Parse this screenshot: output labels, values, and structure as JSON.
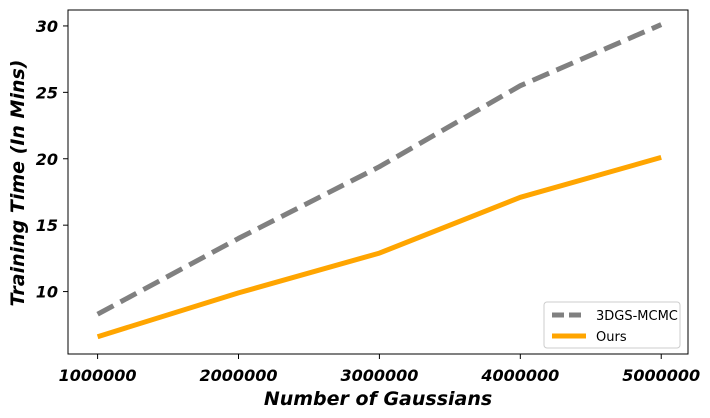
{
  "chart_data": {
    "type": "line",
    "title": "",
    "xlabel": "Number of Gaussians",
    "ylabel": "Training Time (In Mins)",
    "x": [
      1000000,
      2000000,
      3000000,
      4000000,
      5000000
    ],
    "x_ticks": [
      1000000,
      2000000,
      3000000,
      4000000,
      5000000
    ],
    "x_tick_labels": [
      "1000000",
      "2000000",
      "3000000",
      "4000000",
      "5000000"
    ],
    "xlim": [
      790000,
      5190000
    ],
    "y_ticks": [
      10,
      15,
      20,
      25,
      30
    ],
    "y_tick_labels": [
      "10",
      "15",
      "20",
      "25",
      "30"
    ],
    "ylim": [
      5.3,
      31.2
    ],
    "grid": false,
    "legend_position": "lower-right",
    "series": [
      {
        "name": "3DGS-MCMC",
        "values": [
          8.3,
          14.0,
          19.4,
          25.5,
          30.1
        ],
        "color": "#808080",
        "style": "dashed"
      },
      {
        "name": "Ours",
        "values": [
          6.6,
          9.9,
          12.9,
          17.1,
          20.1
        ],
        "color": "#FFA500",
        "style": "solid"
      }
    ]
  }
}
